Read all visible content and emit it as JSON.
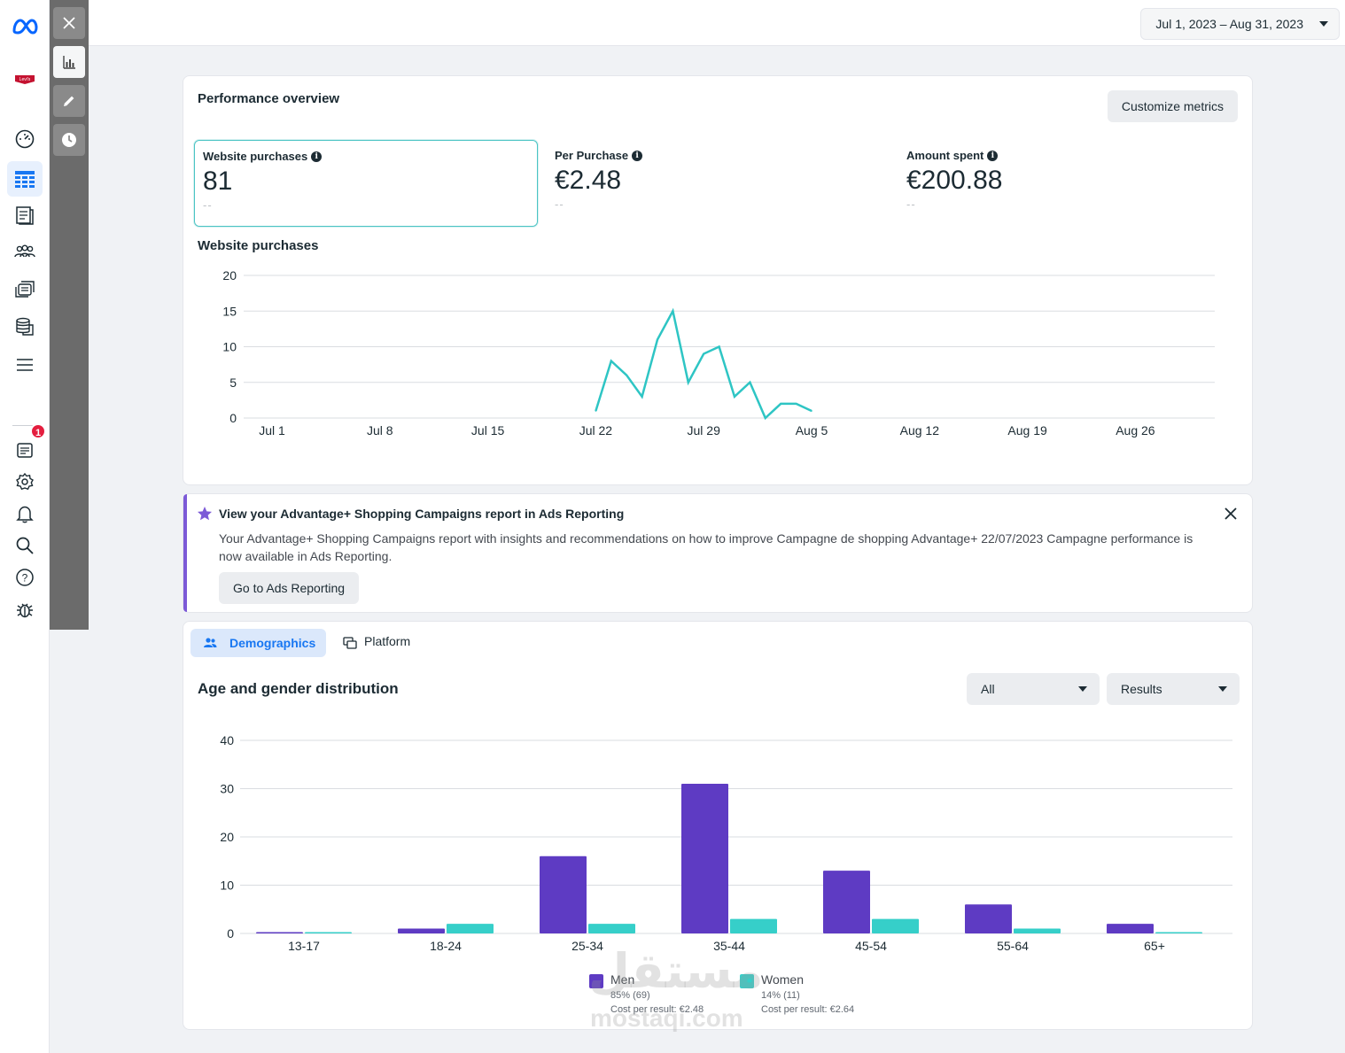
{
  "topbar": {
    "date_range": "Jul 1, 2023 – Aug 31, 2023"
  },
  "sidebar": {
    "icons": [
      "meta-logo-icon",
      "levis-logo-icon",
      "dashboard-gauge-icon",
      "campaigns-table-icon",
      "pages-icon",
      "audiences-icon",
      "ads-library-icon",
      "billing-icon",
      "menu-icon",
      "inbox-icon",
      "settings-icon",
      "notifications-icon",
      "search-icon",
      "help-icon",
      "bug-report-icon"
    ],
    "inbox_badge": "1"
  },
  "toolstrip": {
    "icons": [
      "close-icon",
      "bar-chart-icon",
      "edit-icon",
      "history-icon"
    ]
  },
  "performance": {
    "title": "Performance overview",
    "customize_label": "Customize metrics",
    "metrics": [
      {
        "label": "Website purchases",
        "value": "81",
        "compare": "--"
      },
      {
        "label": "Per Purchase",
        "value": "€2.48",
        "compare": "--"
      },
      {
        "label": "Amount spent",
        "value": "€200.88",
        "compare": "--"
      }
    ],
    "chart_title": "Website purchases"
  },
  "banner": {
    "title": "View your Advantage+ Shopping Campaigns report in Ads Reporting",
    "body": "Your Advantage+ Shopping Campaigns report with insights and recommendations on how to improve Campagne de shopping Advantage+ 22/07/2023 Campagne performance is now available in Ads Reporting.",
    "button_label": "Go to Ads Reporting"
  },
  "demographics": {
    "tabs": [
      {
        "label": "Demographics",
        "icon": "people-icon"
      },
      {
        "label": "Platform",
        "icon": "platform-icon"
      }
    ],
    "title": "Age and gender distribution",
    "filter_all": "All",
    "filter_metric": "Results",
    "legend": [
      {
        "name": "Men",
        "stat": "85% (69)",
        "cpr": "Cost per result: €2.48"
      },
      {
        "name": "Women",
        "stat": "14% (11)",
        "cpr": "Cost per result: €2.64"
      }
    ]
  },
  "watermark": {
    "arabic": "مستقل",
    "latin": "mostaqi.com"
  },
  "colors": {
    "accent": "#1877f2",
    "men": "#5e3bc3",
    "women": "#36cfc9",
    "line": "#2ec5c4",
    "banner_accent": "#7c5ad7"
  },
  "chart_data": [
    {
      "type": "line",
      "title": "Website purchases",
      "x_ticks": [
        "Jul 1",
        "Jul 8",
        "Jul 15",
        "Jul 22",
        "Jul 29",
        "Aug 5",
        "Aug 12",
        "Aug 19",
        "Aug 26"
      ],
      "y_ticks": [
        0,
        5,
        10,
        15,
        20
      ],
      "ylim": [
        0,
        20
      ],
      "x_start": "Jul 1",
      "series": [
        {
          "dates": [
            "Jul 22",
            "Jul 23",
            "Jul 24",
            "Jul 25",
            "Jul 26",
            "Jul 27",
            "Jul 28",
            "Jul 29",
            "Jul 30",
            "Jul 31",
            "Aug 1",
            "Aug 2",
            "Aug 3",
            "Aug 4",
            "Aug 5"
          ],
          "values": [
            1,
            8,
            6,
            3,
            11,
            15,
            5,
            9,
            10,
            3,
            5,
            0,
            2,
            2,
            1
          ]
        }
      ],
      "grid": true
    },
    {
      "type": "bar",
      "title": "Age and gender distribution",
      "categories": [
        "13-17",
        "18-24",
        "25-34",
        "35-44",
        "45-54",
        "55-64",
        "65+"
      ],
      "series": [
        {
          "name": "Men",
          "values": [
            0,
            1,
            16,
            31,
            13,
            6,
            2
          ]
        },
        {
          "name": "Women",
          "values": [
            0,
            2,
            2,
            3,
            3,
            1,
            0
          ]
        }
      ],
      "y_ticks": [
        0,
        10,
        20,
        30,
        40
      ],
      "ylim": [
        0,
        40
      ],
      "grid": true,
      "legend": "bottom"
    }
  ]
}
